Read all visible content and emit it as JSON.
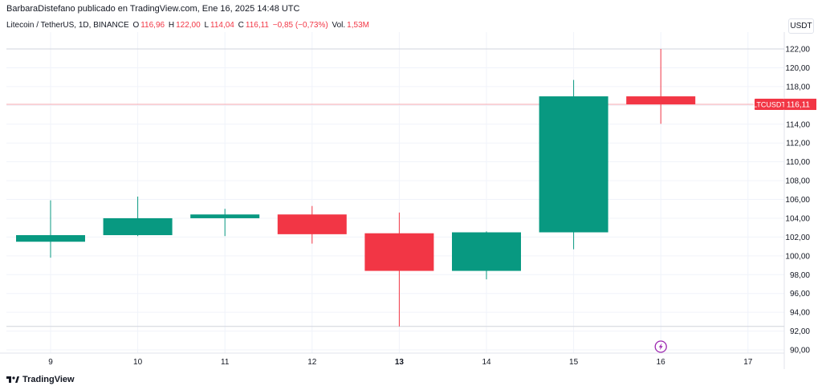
{
  "header": {
    "published_line": "BarbaraDistefano publicado en TradingView.com, Ene 16, 2025 14:48 UTC"
  },
  "legend": {
    "symbol": "Litecoin / TetherUS, 1D, BINANCE",
    "open_label": "O",
    "open_value": "116,96",
    "high_label": "H",
    "high_value": "122,00",
    "low_label": "L",
    "low_value": "114,04",
    "close_label": "C",
    "close_value": "116,11",
    "change": "−0,85 (−0,73%)",
    "volume_label": "Vol.",
    "volume_value": "1,53M"
  },
  "unit_button": "USDT",
  "last_price_tag": {
    "symbol": "LTCUSDT",
    "value": "116,11"
  },
  "brand": "TradingView",
  "colors": {
    "up": "#089981",
    "down": "#f23645",
    "grid": "#f0f3fa",
    "text": "#131722",
    "event_icon": "#9c27b0"
  },
  "event_icon": "lightning-icon",
  "chart_data": {
    "type": "candlestick",
    "x_tick_labels": [
      "9",
      "10",
      "11",
      "12",
      "13",
      "14",
      "15",
      "16",
      "17"
    ],
    "y_tick_labels": [
      "122,00",
      "120,00",
      "118,00",
      "116,00",
      "114,00",
      "112,00",
      "110,00",
      "108,00",
      "106,00",
      "104,00",
      "102,00",
      "100,00",
      "98,00",
      "96,00",
      "94,00",
      "92,00",
      "90,00"
    ],
    "ylim": [
      89.6,
      122.8
    ],
    "grid": true,
    "candles": [
      {
        "date": "9",
        "open": 101.5,
        "high": 105.9,
        "low": 99.8,
        "close": 102.2
      },
      {
        "date": "10",
        "open": 102.2,
        "high": 106.3,
        "low": 102.1,
        "close": 104.0
      },
      {
        "date": "11",
        "open": 104.0,
        "high": 105.0,
        "low": 102.1,
        "close": 104.4
      },
      {
        "date": "12",
        "open": 104.4,
        "high": 105.3,
        "low": 101.3,
        "close": 102.3
      },
      {
        "date": "13",
        "open": 102.4,
        "high": 104.6,
        "low": 92.5,
        "close": 98.4
      },
      {
        "date": "14",
        "open": 98.4,
        "high": 102.6,
        "low": 97.5,
        "close": 102.5
      },
      {
        "date": "15",
        "open": 102.5,
        "high": 118.7,
        "low": 100.7,
        "close": 116.96
      },
      {
        "date": "16",
        "open": 116.96,
        "high": 122.0,
        "low": 114.04,
        "close": 116.11
      }
    ],
    "last_price": 116.11,
    "high_line": 122.0,
    "low_line": 92.5
  }
}
